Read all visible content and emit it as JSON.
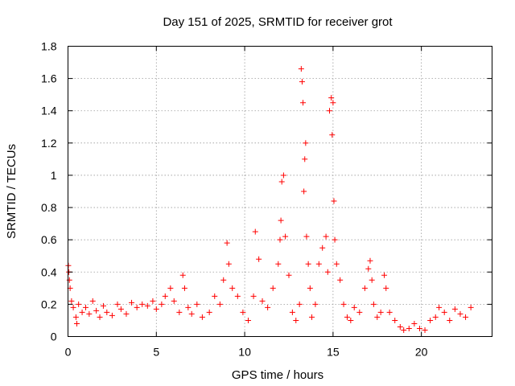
{
  "chart_data": {
    "type": "scatter",
    "title": "Day 151 of 2025, SRMTID for receiver grot",
    "xlabel": "GPS time / hours",
    "ylabel": "SRMTID / TECUs",
    "xlim": [
      0,
      24
    ],
    "ylim": [
      0,
      1.8
    ],
    "xticks": [
      0,
      5,
      10,
      15,
      20
    ],
    "xtick_labels": [
      "0",
      "5",
      "10",
      "15",
      "20"
    ],
    "yticks": [
      0,
      0.2,
      0.4,
      0.6,
      0.8,
      1.0,
      1.2,
      1.4,
      1.6,
      1.8
    ],
    "ytick_labels": [
      "0",
      "0.2",
      "0.4",
      "0.6",
      "0.8",
      "1",
      "1.2",
      "1.4",
      "1.6",
      "1.8"
    ],
    "grid": true,
    "marker": "+",
    "color": "#ff0000",
    "series": [
      {
        "name": "SRMTID",
        "x": [
          0.02,
          0.05,
          0.08,
          0.12,
          0.2,
          0.3,
          0.45,
          0.5,
          0.6,
          0.8,
          1.0,
          1.2,
          1.4,
          1.6,
          1.8,
          2.0,
          2.2,
          2.5,
          2.8,
          3.0,
          3.3,
          3.6,
          3.9,
          4.2,
          4.5,
          4.8,
          5.0,
          5.3,
          5.5,
          5.8,
          6.0,
          6.3,
          6.5,
          6.6,
          6.8,
          7.0,
          7.3,
          7.6,
          8.0,
          8.3,
          8.6,
          8.8,
          9.0,
          9.1,
          9.3,
          9.6,
          9.9,
          10.2,
          10.5,
          10.6,
          10.8,
          11.0,
          11.3,
          11.6,
          11.9,
          12.0,
          12.05,
          12.1,
          12.2,
          12.3,
          12.5,
          12.7,
          12.9,
          13.1,
          13.2,
          13.25,
          13.3,
          13.35,
          13.4,
          13.45,
          13.5,
          13.6,
          13.7,
          13.8,
          14.0,
          14.2,
          14.4,
          14.6,
          14.7,
          14.8,
          14.9,
          14.95,
          15.0,
          15.05,
          15.1,
          15.2,
          15.4,
          15.6,
          15.8,
          16.0,
          16.2,
          16.5,
          16.8,
          17.0,
          17.1,
          17.2,
          17.3,
          17.5,
          17.7,
          17.9,
          18.0,
          18.2,
          18.5,
          18.8,
          19.0,
          19.3,
          19.6,
          19.9,
          20.2,
          20.5,
          20.8,
          21.0,
          21.3,
          21.6,
          21.9,
          22.2,
          22.5,
          22.8
        ],
        "y": [
          0.44,
          0.4,
          0.35,
          0.3,
          0.22,
          0.18,
          0.12,
          0.08,
          0.2,
          0.15,
          0.18,
          0.14,
          0.22,
          0.16,
          0.12,
          0.19,
          0.15,
          0.13,
          0.2,
          0.17,
          0.14,
          0.21,
          0.18,
          0.2,
          0.19,
          0.22,
          0.17,
          0.2,
          0.25,
          0.3,
          0.22,
          0.15,
          0.38,
          0.3,
          0.18,
          0.14,
          0.2,
          0.12,
          0.15,
          0.25,
          0.2,
          0.35,
          0.58,
          0.45,
          0.3,
          0.25,
          0.15,
          0.1,
          0.25,
          0.65,
          0.48,
          0.22,
          0.18,
          0.3,
          0.45,
          0.6,
          0.72,
          0.96,
          1.0,
          0.62,
          0.38,
          0.15,
          0.1,
          0.2,
          1.66,
          1.58,
          1.45,
          0.9,
          1.1,
          1.2,
          0.62,
          0.45,
          0.3,
          0.12,
          0.2,
          0.45,
          0.55,
          0.62,
          0.4,
          1.4,
          1.48,
          1.25,
          1.45,
          0.84,
          0.6,
          0.45,
          0.35,
          0.2,
          0.12,
          0.1,
          0.18,
          0.15,
          0.3,
          0.42,
          0.47,
          0.35,
          0.2,
          0.12,
          0.15,
          0.38,
          0.3,
          0.15,
          0.1,
          0.06,
          0.04,
          0.05,
          0.08,
          0.05,
          0.04,
          0.1,
          0.12,
          0.18,
          0.15,
          0.1,
          0.17,
          0.14,
          0.12,
          0.18
        ]
      }
    ]
  }
}
